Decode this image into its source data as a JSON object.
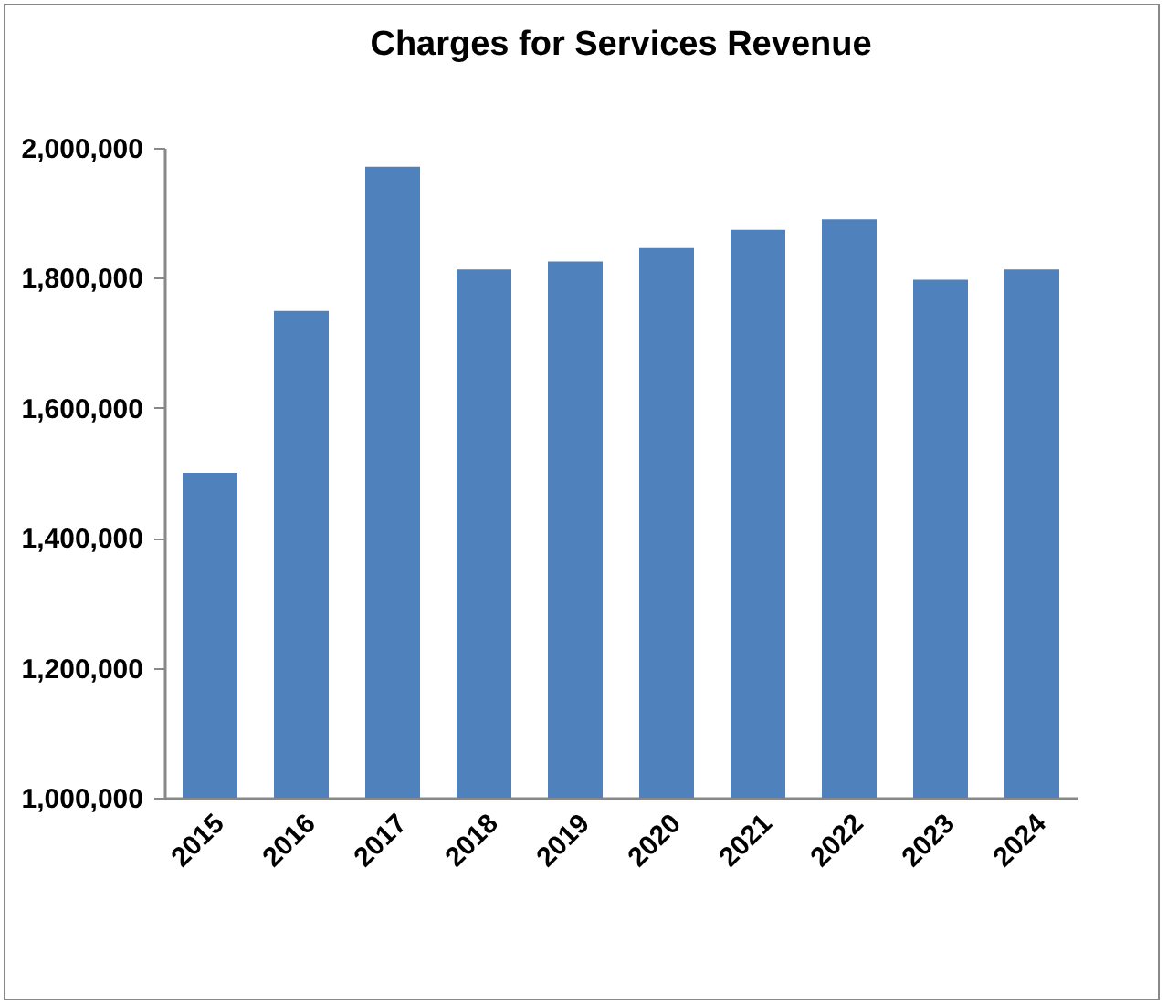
{
  "chart_data": {
    "type": "bar",
    "title": "Charges for Services Revenue",
    "categories": [
      "2015",
      "2016",
      "2017",
      "2018",
      "2019",
      "2020",
      "2021",
      "2022",
      "2023",
      "2024"
    ],
    "values": [
      1500000,
      1749000,
      1971000,
      1813000,
      1825000,
      1846000,
      1874000,
      1890000,
      1797000,
      1813000
    ],
    "color": "#4f81bd",
    "ylim": [
      1000000,
      2000000
    ],
    "yticks": [
      {
        "value": 1000000,
        "label": "1,000,000"
      },
      {
        "value": 1200000,
        "label": "1,200,000"
      },
      {
        "value": 1400000,
        "label": "1,400,000"
      },
      {
        "value": 1600000,
        "label": "1,600,000"
      },
      {
        "value": 1800000,
        "label": "1,800,000"
      },
      {
        "value": 2000000,
        "label": "2,000,000"
      }
    ],
    "grid": false,
    "legend": false
  }
}
